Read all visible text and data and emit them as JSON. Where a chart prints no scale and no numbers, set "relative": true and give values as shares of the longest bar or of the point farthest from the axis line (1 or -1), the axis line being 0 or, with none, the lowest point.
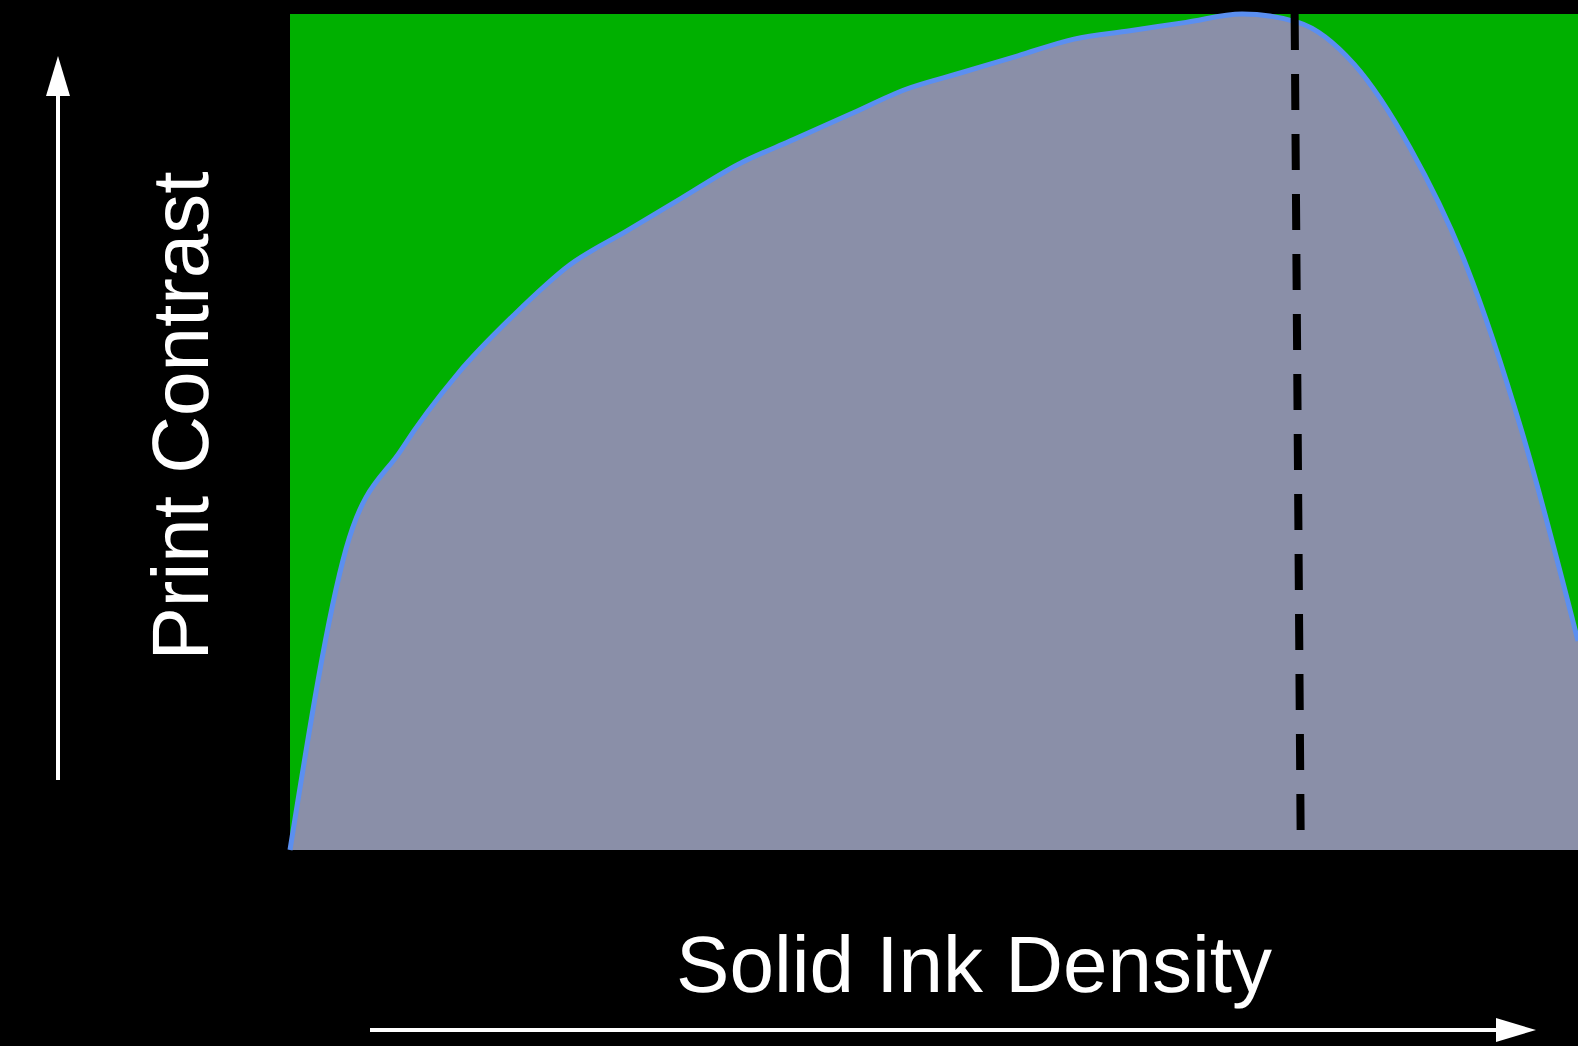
{
  "chart_data": {
    "type": "area",
    "relative": true,
    "xlabel": "Solid Ink Density",
    "ylabel": "Print Contrast",
    "categories": [
      null,
      null,
      null,
      null,
      null,
      null,
      null,
      null,
      null,
      null,
      null,
      null,
      null,
      null,
      null,
      null,
      null,
      null,
      null,
      null,
      null,
      null,
      null,
      null
    ],
    "series": [
      {
        "color": "#8a8fa8",
        "values": [
          0,
          0.36,
          0.48,
          0.57,
          0.64,
          0.7,
          0.74,
          0.78,
          0.82,
          0.85,
          0.88,
          0.91,
          0.93,
          0.95,
          0.97,
          0.98,
          0.99,
          1,
          0.99,
          0.94,
          0.84,
          0.7,
          0.5,
          0.25
        ]
      }
    ]
  }
}
